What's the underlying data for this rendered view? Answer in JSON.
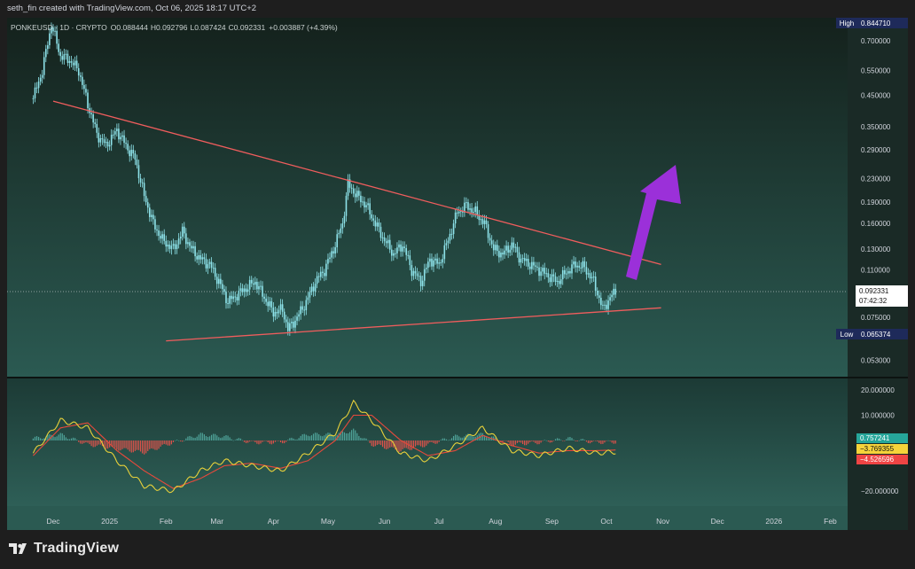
{
  "credit": "seth_fin created with TradingView.com, Oct 06, 2025 18:17 UTC+2",
  "brand": "TradingView",
  "legend": {
    "symbol": "PONKEUSD · 1D · CRYPTO",
    "open_label": "O",
    "open": "0.088444",
    "high_label": "H",
    "high": "0.092796",
    "low_label": "L",
    "low": "0.087424",
    "close_label": "C",
    "close": "0.092331",
    "change": "+0.003887 (+4.39%)"
  },
  "price_axis": {
    "ticks": [
      "0.700000",
      "0.550000",
      "0.450000",
      "0.350000",
      "0.290000",
      "0.230000",
      "0.190000",
      "0.160000",
      "0.130000",
      "0.110000",
      "0.075000",
      "0.053000"
    ],
    "high_label": "High",
    "high_value": "0.844710",
    "low_label": "Low",
    "low_value": "0.065374",
    "last_price": "0.092331",
    "countdown": "07:42:32"
  },
  "osc_axis": {
    "ticks": [
      "20.000000",
      "10.000000",
      "−20.000000"
    ],
    "hist_value": "0.757241",
    "signal_value": "−3.769355",
    "macd_value": "−4.526596"
  },
  "time_axis": {
    "labels": [
      "Dec",
      "2025",
      "Feb",
      "Mar",
      "Apr",
      "May",
      "Jun",
      "Jul",
      "Aug",
      "Sep",
      "Oct",
      "Nov",
      "Dec",
      "2026",
      "Feb"
    ]
  },
  "colors": {
    "bg_top": "#14211c",
    "bg_bottom": "#2b5a52",
    "candle": "#8ee3ea",
    "trendline": "#f05d5d",
    "arrow": "#9b30d9",
    "macd": "#e8d13a",
    "signal": "#e8493b",
    "hist_up": "#4fa49a",
    "hist_down": "#e0524b",
    "high_badge": "#1e2a5a",
    "hist_badge": "#26a69a",
    "signal_badge": "#f5d33a",
    "macd_badge": "#ef4444"
  },
  "chart_data": {
    "type": "line",
    "title": "PONKEUSD · 1D · CRYPTO",
    "scale": "log",
    "ylim": [
      0.045,
      0.9
    ],
    "grid": false,
    "price_series": {
      "name": "PONKEUSD",
      "x": [
        "2024-11-20",
        "2024-11-25",
        "2024-11-30",
        "2024-12-05",
        "2024-12-10",
        "2024-12-15",
        "2024-12-20",
        "2024-12-25",
        "2024-12-30",
        "2025-01-05",
        "2025-01-10",
        "2025-01-15",
        "2025-01-20",
        "2025-01-25",
        "2025-01-30",
        "2025-02-05",
        "2025-02-10",
        "2025-02-15",
        "2025-02-20",
        "2025-02-25",
        "2025-03-02",
        "2025-03-07",
        "2025-03-12",
        "2025-03-17",
        "2025-03-22",
        "2025-03-27",
        "2025-04-01",
        "2025-04-06",
        "2025-04-09",
        "2025-04-14",
        "2025-04-19",
        "2025-04-24",
        "2025-04-29",
        "2025-05-04",
        "2025-05-09",
        "2025-05-12",
        "2025-05-17",
        "2025-05-22",
        "2025-05-27",
        "2025-06-01",
        "2025-06-06",
        "2025-06-11",
        "2025-06-16",
        "2025-06-21",
        "2025-06-26",
        "2025-07-01",
        "2025-07-06",
        "2025-07-11",
        "2025-07-16",
        "2025-07-21",
        "2025-07-26",
        "2025-07-31",
        "2025-08-05",
        "2025-08-10",
        "2025-08-15",
        "2025-08-20",
        "2025-08-25",
        "2025-08-30",
        "2025-09-04",
        "2025-09-09",
        "2025-09-14",
        "2025-09-19",
        "2025-09-24",
        "2025-09-29",
        "2025-10-03",
        "2025-10-06"
      ],
      "y": [
        0.44,
        0.55,
        0.8,
        0.62,
        0.6,
        0.55,
        0.42,
        0.33,
        0.3,
        0.34,
        0.3,
        0.27,
        0.2,
        0.16,
        0.14,
        0.13,
        0.15,
        0.13,
        0.12,
        0.115,
        0.1,
        0.085,
        0.09,
        0.095,
        0.1,
        0.088,
        0.078,
        0.08,
        0.068,
        0.075,
        0.085,
        0.1,
        0.11,
        0.13,
        0.16,
        0.22,
        0.2,
        0.185,
        0.16,
        0.14,
        0.125,
        0.135,
        0.11,
        0.1,
        0.12,
        0.115,
        0.14,
        0.175,
        0.185,
        0.175,
        0.16,
        0.13,
        0.125,
        0.135,
        0.12,
        0.115,
        0.11,
        0.105,
        0.1,
        0.108,
        0.115,
        0.112,
        0.1,
        0.08,
        0.088,
        0.092331
      ]
    },
    "trendlines": [
      {
        "name": "resistance",
        "x": [
          "2024-12-01",
          "2025-10-31"
        ],
        "y": [
          0.43,
          0.115
        ]
      },
      {
        "name": "support",
        "x": [
          "2025-02-01",
          "2025-10-31"
        ],
        "y": [
          0.062,
          0.081
        ]
      }
    ],
    "macd": {
      "x": [
        "2024-11-20",
        "2024-12-05",
        "2024-12-20",
        "2025-01-05",
        "2025-01-20",
        "2025-02-05",
        "2025-02-20",
        "2025-03-05",
        "2025-03-20",
        "2025-04-05",
        "2025-04-20",
        "2025-05-05",
        "2025-05-15",
        "2025-05-25",
        "2025-06-10",
        "2025-06-25",
        "2025-07-10",
        "2025-07-25",
        "2025-08-10",
        "2025-08-25",
        "2025-09-10",
        "2025-09-25",
        "2025-10-06"
      ],
      "macd": [
        -5,
        8,
        5,
        -8,
        -18,
        -20,
        -12,
        -8,
        -10,
        -12,
        -5,
        3,
        15,
        8,
        -5,
        -8,
        -2,
        5,
        -4,
        -6,
        -3,
        -5,
        -4.53
      ],
      "signal": [
        -6,
        5,
        7,
        -4,
        -12,
        -19,
        -15,
        -10,
        -9,
        -11,
        -8,
        0,
        10,
        10,
        0,
        -6,
        -4,
        2,
        -2,
        -5,
        -4,
        -4,
        -3.77
      ],
      "hist_last": 0.757241
    }
  }
}
